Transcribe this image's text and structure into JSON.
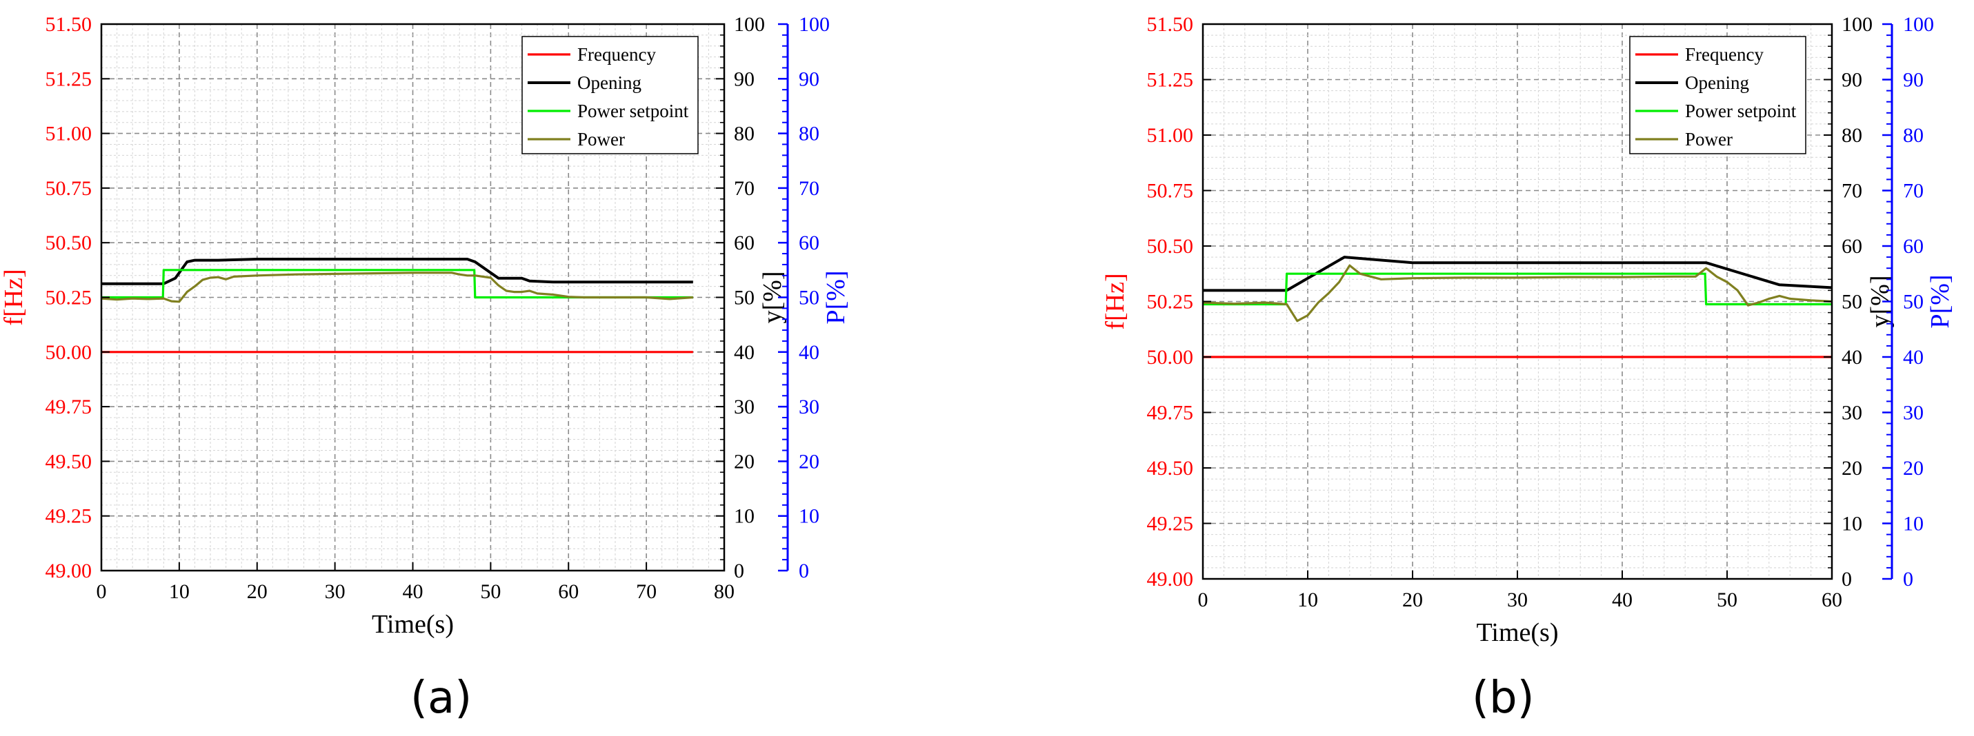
{
  "chart_data": [
    {
      "type": "line",
      "panel_label": "(a)",
      "xlabel": "Time(s)",
      "ylabel_left": "f[Hz]",
      "ylabel_right1": "y[%]",
      "ylabel_right2": "P[%]",
      "xlim": [
        0,
        80
      ],
      "x_ticks": [
        "0",
        "10",
        "20",
        "30",
        "40",
        "50",
        "60",
        "70",
        "80"
      ],
      "ylim_left": [
        49.0,
        51.5
      ],
      "left_ticks": [
        "49.00",
        "49.25",
        "49.50",
        "49.75",
        "50.00",
        "50.25",
        "50.50",
        "50.75",
        "51.00",
        "51.25",
        "51.50"
      ],
      "ylim_right": [
        0,
        100
      ],
      "right_ticks": [
        "0",
        "10",
        "20",
        "30",
        "40",
        "50",
        "60",
        "70",
        "80",
        "90",
        "100"
      ],
      "grid": true,
      "legend_position": "top-right",
      "series": [
        {
          "name": "Frequency",
          "axis": "left",
          "color": "#ff0000",
          "x": [
            0,
            76
          ],
          "y": [
            50.0,
            50.0
          ]
        },
        {
          "name": "Opening",
          "axis": "right",
          "color": "#000000",
          "x": [
            0,
            8,
            9.5,
            11,
            12,
            15,
            20,
            30,
            40,
            47,
            48,
            50,
            51,
            54,
            55,
            58,
            76
          ],
          "y": [
            52.5,
            52.5,
            53.5,
            56.5,
            56.8,
            56.8,
            57.0,
            57.0,
            57.0,
            57.0,
            56.5,
            54.5,
            53.5,
            53.5,
            53.0,
            52.8,
            52.8
          ]
        },
        {
          "name": "Power setpoint",
          "axis": "right",
          "color": "#00ee00",
          "x": [
            0,
            7.9,
            8,
            47.9,
            48,
            76
          ],
          "y": [
            50.0,
            50.0,
            55.0,
            55.0,
            50.0,
            50.0
          ]
        },
        {
          "name": "Power",
          "axis": "right",
          "color": "#808020",
          "x": [
            0,
            2,
            4,
            6,
            8,
            9,
            10,
            11,
            12,
            13,
            14,
            15,
            16,
            17,
            20,
            25,
            30,
            35,
            40,
            45,
            46,
            47,
            48,
            49,
            50,
            51,
            52,
            53,
            54,
            55,
            56,
            58,
            60,
            62,
            65,
            70,
            73,
            76
          ],
          "y": [
            49.8,
            49.6,
            49.8,
            49.7,
            49.8,
            49.3,
            49.2,
            51.0,
            52.0,
            53.2,
            53.6,
            53.7,
            53.3,
            53.8,
            54.0,
            54.2,
            54.3,
            54.4,
            54.5,
            54.5,
            54.2,
            54.0,
            54.0,
            53.8,
            53.6,
            52.2,
            51.2,
            51.0,
            51.0,
            51.2,
            50.7,
            50.5,
            50.1,
            50.0,
            50.0,
            50.0,
            49.7,
            50.0
          ]
        }
      ]
    },
    {
      "type": "line",
      "panel_label": "(b)",
      "xlabel": "Time(s)",
      "ylabel_left": "f[Hz]",
      "ylabel_right1": "y[%]",
      "ylabel_right2": "P[%]",
      "xlim": [
        0,
        60
      ],
      "x_ticks": [
        "0",
        "10",
        "20",
        "30",
        "40",
        "50",
        "60"
      ],
      "ylim_left": [
        49.0,
        51.5
      ],
      "left_ticks": [
        "49.00",
        "49.25",
        "49.50",
        "49.75",
        "50.00",
        "50.25",
        "50.50",
        "50.75",
        "51.00",
        "51.25",
        "51.50"
      ],
      "ylim_right": [
        0,
        100
      ],
      "right_ticks": [
        "0",
        "10",
        "20",
        "30",
        "40",
        "50",
        "60",
        "70",
        "80",
        "90",
        "100"
      ],
      "grid": true,
      "legend_position": "top-right",
      "series": [
        {
          "name": "Frequency",
          "axis": "left",
          "color": "#ff0000",
          "x": [
            0,
            60
          ],
          "y": [
            50.0,
            50.0
          ]
        },
        {
          "name": "Opening",
          "axis": "right",
          "color": "#000000",
          "x": [
            0,
            8,
            13.5,
            20,
            30,
            40,
            48,
            55,
            60
          ],
          "y": [
            52.0,
            52.0,
            58.0,
            57.0,
            57.0,
            57.0,
            57.0,
            53.0,
            52.5
          ]
        },
        {
          "name": "Power setpoint",
          "axis": "right",
          "color": "#00ee00",
          "x": [
            0,
            7.9,
            8,
            47.9,
            48,
            60
          ],
          "y": [
            49.5,
            49.5,
            55.0,
            55.0,
            49.5,
            49.5
          ]
        },
        {
          "name": "Power",
          "axis": "right",
          "color": "#808020",
          "x": [
            0,
            3,
            6,
            8,
            9,
            10,
            11,
            12,
            13,
            14,
            15,
            16,
            17,
            20,
            25,
            30,
            35,
            40,
            45,
            47,
            48,
            49,
            50,
            51,
            52,
            53,
            54,
            55,
            56,
            58,
            60
          ],
          "y": [
            49.8,
            49.6,
            49.8,
            49.5,
            46.5,
            47.5,
            49.8,
            51.5,
            53.5,
            56.5,
            55.0,
            54.5,
            54.0,
            54.2,
            54.3,
            54.3,
            54.4,
            54.4,
            54.5,
            54.5,
            56.0,
            54.5,
            53.5,
            52.0,
            49.3,
            49.8,
            50.5,
            51.0,
            50.5,
            50.2,
            50.0
          ]
        }
      ]
    }
  ]
}
